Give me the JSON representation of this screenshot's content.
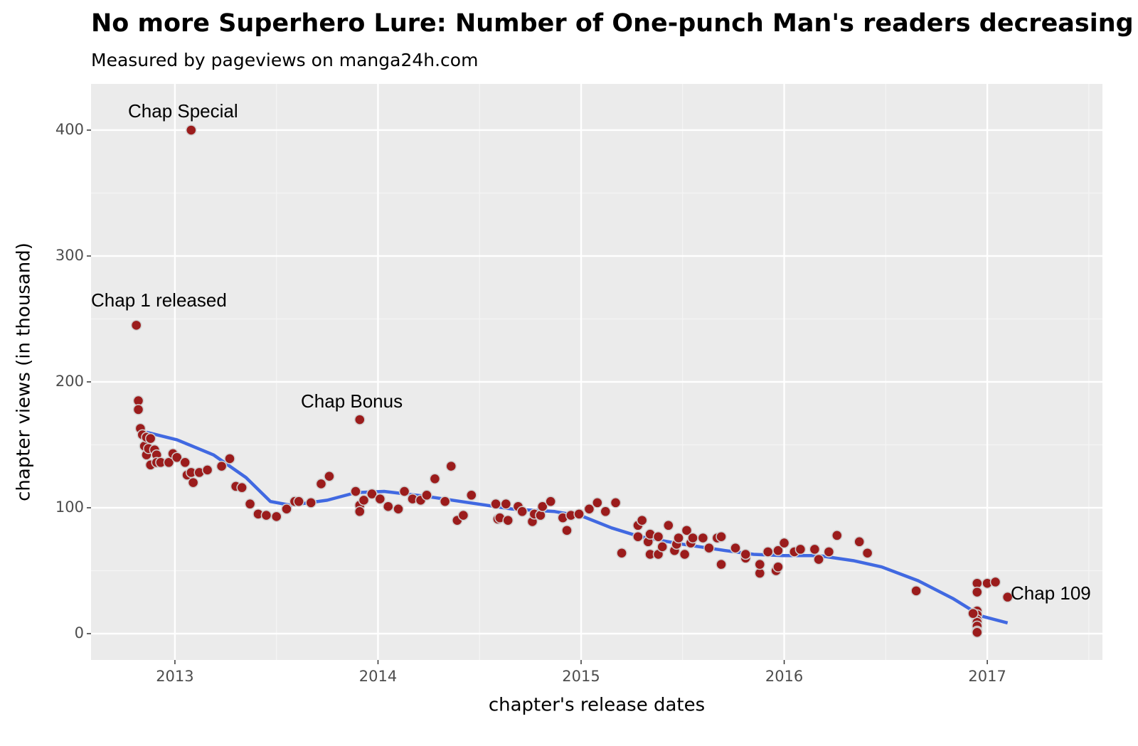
{
  "chart_data": {
    "type": "scatter",
    "title": "No more Superhero Lure: Number of One-punch Man's readers decreasing",
    "subtitle": "Measured by pageviews on manga24h.com",
    "xlabel": "chapter's release dates",
    "ylabel": "chapter views (in thousand)",
    "xlim": [
      2012.587,
      2017.567
    ],
    "ylim": [
      -20.9,
      436.7
    ],
    "xticks": [
      2013,
      2014,
      2015,
      2016,
      2017
    ],
    "yticks": [
      0,
      100,
      200,
      300,
      400
    ],
    "grid": true,
    "minor_grid": true,
    "annotations": [
      "Chap 1 released",
      "Chap Special",
      "Chap Bonus",
      "Chap 109"
    ],
    "series": [
      {
        "type": "scatter",
        "color": "#9b1c1c",
        "x": [
          2012.81,
          2013.08,
          2012.82,
          2012.82,
          2012.83,
          2012.84,
          2012.85,
          2012.86,
          2012.86,
          2012.87,
          2012.88,
          2012.88,
          2012.9,
          2012.91,
          2012.91,
          2012.93,
          2012.97,
          2012.99,
          2013.01,
          2013.05,
          2013.06,
          2013.08,
          2013.09,
          2013.12,
          2013.16,
          2013.23,
          2013.27,
          2013.3,
          2013.33,
          2013.37,
          2013.41,
          2013.45,
          2013.5,
          2013.55,
          2013.59,
          2013.61,
          2013.67,
          2013.72,
          2013.76,
          2013.91,
          2013.89,
          2013.91,
          2013.91,
          2013.93,
          2013.97,
          2014.01,
          2014.05,
          2014.1,
          2014.13,
          2014.17,
          2014.21,
          2014.24,
          2014.28,
          2014.33,
          2014.36,
          2014.39,
          2014.42,
          2014.46,
          2014.58,
          2014.59,
          2014.6,
          2014.63,
          2014.64,
          2014.69,
          2014.71,
          2014.76,
          2014.77,
          2014.8,
          2014.81,
          2014.85,
          2014.91,
          2014.93,
          2014.95,
          2014.99,
          2015.04,
          2015.08,
          2015.12,
          2015.17,
          2015.2,
          2015.28,
          2015.3,
          2015.28,
          2015.33,
          2015.34,
          2015.34,
          2015.38,
          2015.38,
          2015.4,
          2015.43,
          2015.46,
          2015.47,
          2015.48,
          2015.51,
          2015.52,
          2015.54,
          2015.55,
          2015.6,
          2015.63,
          2015.67,
          2015.69,
          2015.69,
          2015.76,
          2015.81,
          2015.81,
          2015.88,
          2015.88,
          2015.92,
          2015.96,
          2015.97,
          2015.97,
          2016.0,
          2016.05,
          2016.08,
          2016.15,
          2016.17,
          2016.22,
          2016.26,
          2016.37,
          2016.41,
          2016.65,
          2016.95,
          2016.95,
          2016.95,
          2016.95,
          2016.95,
          2016.95,
          2016.95,
          2016.95,
          2016.95,
          2017.0,
          2017.04,
          2016.93,
          2017.1
        ],
        "values": [
          245,
          400,
          185,
          178,
          163,
          158,
          149,
          142,
          156,
          147,
          155,
          134,
          146,
          142,
          136,
          136,
          136,
          143,
          140,
          136,
          126,
          128,
          120,
          128,
          130,
          133,
          139,
          117,
          116,
          103,
          95,
          94,
          93,
          99,
          105,
          105,
          104,
          119,
          125,
          170,
          113,
          102,
          97,
          106,
          111,
          107,
          101,
          99,
          113,
          107,
          106,
          110,
          123,
          105,
          133,
          90,
          94,
          110,
          103,
          91,
          92,
          103,
          90,
          101,
          97,
          89,
          95,
          94,
          101,
          105,
          92,
          82,
          94,
          95,
          99,
          104,
          97,
          104,
          64,
          86,
          90,
          77,
          73,
          79,
          63,
          63,
          77,
          69,
          86,
          66,
          71,
          76,
          63,
          82,
          72,
          76,
          76,
          68,
          76,
          77,
          55,
          68,
          60,
          63,
          48,
          55,
          65,
          50,
          53,
          66,
          72,
          65,
          67,
          67,
          59,
          65,
          78,
          73,
          64,
          34,
          40,
          33,
          18,
          15,
          11,
          9,
          6,
          2,
          1,
          40,
          41,
          16,
          29
        ]
      },
      {
        "type": "line",
        "color": "#4169e1",
        "x": [
          2012.86,
          2013.01,
          2013.19,
          2013.35,
          2013.47,
          2013.57,
          2013.75,
          2013.89,
          2014.03,
          2014.24,
          2014.45,
          2014.66,
          2014.87,
          2015.01,
          2015.15,
          2015.29,
          2015.5,
          2015.71,
          2015.85,
          2015.99,
          2016.17,
          2016.34,
          2016.48,
          2016.66,
          2016.83,
          2016.97,
          2017.1
        ],
        "values": [
          160,
          154,
          142,
          124,
          105,
          102,
          106,
          112,
          113,
          109,
          104,
          99,
          97,
          93,
          84,
          77,
          71,
          66,
          63,
          62,
          62,
          58,
          53,
          42,
          28,
          14,
          8.5
        ]
      }
    ]
  }
}
